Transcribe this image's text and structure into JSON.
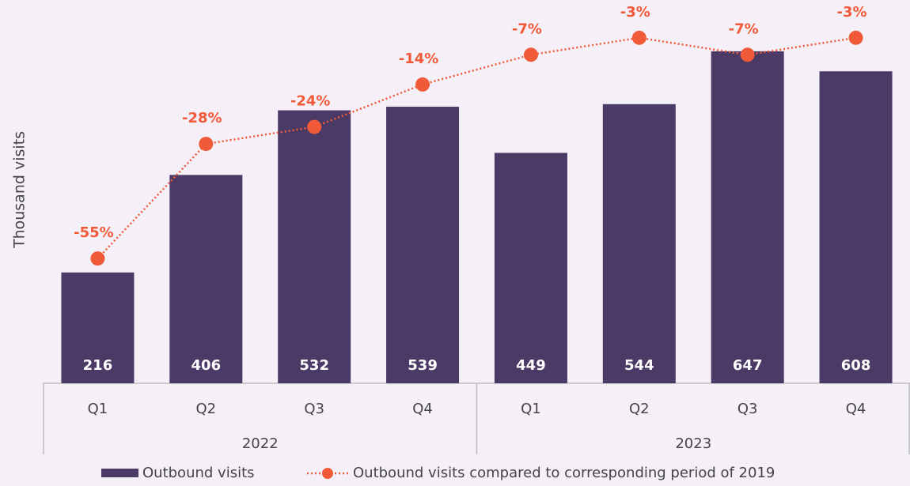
{
  "chart_data": {
    "type": "bar",
    "y_label": "Thousand visits",
    "categories": [
      "Q1",
      "Q2",
      "Q3",
      "Q4",
      "Q1",
      "Q2",
      "Q3",
      "Q4"
    ],
    "groups": [
      "2022",
      "2023"
    ],
    "ylim": [
      0,
      747
    ],
    "y2lim": [
      -84.4,
      5.9
    ],
    "series": [
      {
        "name": "Outbound visits",
        "type": "bar",
        "color": "#4b3a66",
        "values": [
          216,
          406,
          532,
          539,
          449,
          544,
          647,
          608
        ]
      },
      {
        "name": "Outbound visits compared to corresponding period of 2019",
        "type": "line",
        "axis": "y2",
        "color": "#f05a38",
        "values": [
          -55,
          -28,
          -24,
          -14,
          -7,
          -3,
          -7,
          -3
        ],
        "value_labels": [
          "-55%",
          "-28%",
          "-24%",
          "-14%",
          "-7%",
          "-3%",
          "-7%",
          "-3%"
        ]
      }
    ]
  }
}
